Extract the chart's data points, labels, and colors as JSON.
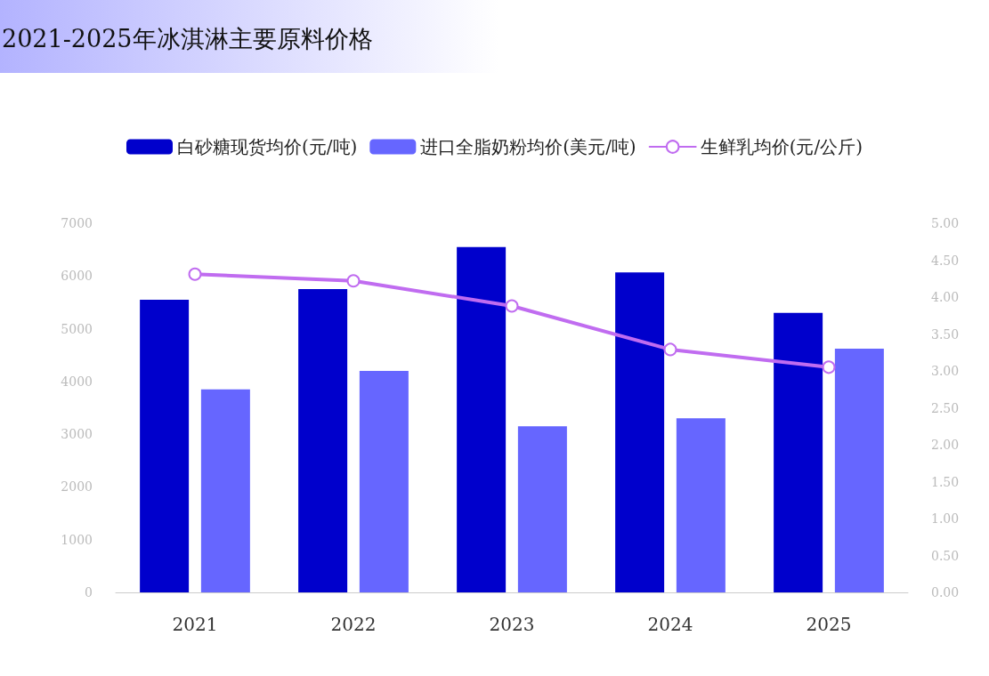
{
  "chart_data": {
    "type": "bar",
    "title": "2021-2025年冰淇淋主要原料价格",
    "categories": [
      "2021",
      "2022",
      "2023",
      "2024",
      "2025"
    ],
    "series": [
      {
        "name": "白砂糖现货均价(元/吨)",
        "color": "#0000cc",
        "values": [
          5550,
          5750,
          6550,
          6070,
          5300
        ]
      },
      {
        "name": "进口全脂奶粉均价(美元/吨)",
        "color": "#6666ff",
        "values": [
          3850,
          4200,
          3150,
          3300,
          4620
        ]
      },
      {
        "name": "生鲜乳均价(元/公斤)",
        "type": "line",
        "axis": "y2",
        "color": "#c06cf0",
        "marker": "circle",
        "line_style": "solid",
        "values": [
          4.31,
          4.22,
          3.88,
          3.29,
          3.05
        ]
      }
    ],
    "ylim": [
      0,
      7000
    ],
    "yticks": [
      0,
      1000,
      2000,
      3000,
      4000,
      5000,
      6000,
      7000
    ],
    "y2lim": [
      0,
      5
    ],
    "y2ticks": [
      {
        "value": 0,
        "label": "0.00"
      },
      {
        "value": 0.5,
        "label": "0.50"
      },
      {
        "value": 1,
        "label": "1.00"
      },
      {
        "value": 1.5,
        "label": "1.50"
      },
      {
        "value": 2,
        "label": "2.00"
      },
      {
        "value": 2.5,
        "label": "2.50"
      },
      {
        "value": 3,
        "label": "3.00"
      },
      {
        "value": 3.5,
        "label": "3.50"
      },
      {
        "value": 4,
        "label": "4.00"
      },
      {
        "value": 4.5,
        "label": "4.50"
      },
      {
        "value": 5,
        "label": "5.00"
      }
    ],
    "grid": false,
    "legend": "top"
  }
}
